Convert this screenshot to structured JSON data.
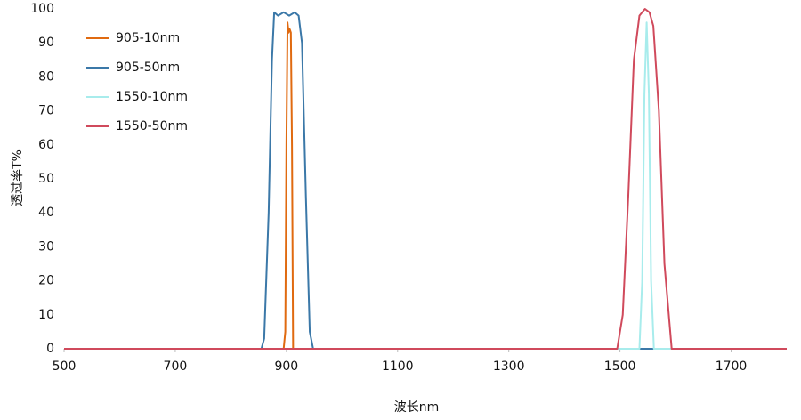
{
  "chart_data": {
    "type": "line",
    "x_label": "波长nm",
    "y_label": "透过率T%",
    "xlim": [
      500,
      1800
    ],
    "xticks": [
      500,
      700,
      900,
      1100,
      1300,
      1500,
      1700
    ],
    "ylim": [
      0,
      100
    ],
    "yticks": [
      0,
      10,
      20,
      30,
      40,
      50,
      60,
      70,
      80,
      90,
      100
    ],
    "grid": false,
    "legend": "upper left",
    "series": [
      {
        "name": "905-10nm",
        "color": "#e06a10",
        "x": [
          500,
          895,
          898,
          900,
          902,
          904,
          906,
          908,
          910,
          912,
          1800
        ],
        "values": [
          0,
          0,
          5,
          60,
          96,
          93,
          94,
          93,
          60,
          0,
          0
        ]
      },
      {
        "name": "905-50nm",
        "color": "#3b78a8",
        "x": [
          500,
          855,
          860,
          868,
          874,
          878,
          885,
          895,
          905,
          915,
          922,
          928,
          935,
          942,
          948,
          1800
        ],
        "values": [
          0,
          0,
          3,
          40,
          85,
          99,
          98,
          99,
          98,
          99,
          98,
          90,
          45,
          5,
          0,
          0
        ]
      },
      {
        "name": "1550-10nm",
        "color": "#a8ecec",
        "x": [
          500,
          1535,
          1540,
          1544,
          1548,
          1552,
          1556,
          1561,
          1800
        ],
        "values": [
          0,
          0,
          20,
          75,
          96,
          75,
          20,
          0,
          0
        ]
      },
      {
        "name": "1550-50nm",
        "color": "#d04a5c",
        "x": [
          500,
          1495,
          1505,
          1515,
          1525,
          1535,
          1545,
          1553,
          1560,
          1570,
          1580,
          1593,
          1800
        ],
        "values": [
          0,
          0,
          10,
          45,
          85,
          98,
          100,
          99,
          95,
          70,
          25,
          0,
          0
        ]
      }
    ]
  }
}
